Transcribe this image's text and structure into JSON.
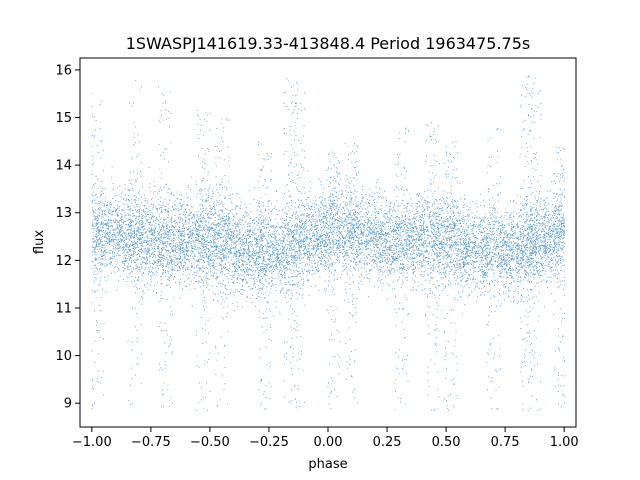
{
  "chart_data": {
    "type": "scatter",
    "title": "1SWASPJ141619.33-413848.4 Period 1963475.75s",
    "xlabel": "phase",
    "ylabel": "flux",
    "xlim": [
      -1.05,
      1.05
    ],
    "ylim": [
      8.5,
      16.25
    ],
    "xticks": [
      -1.0,
      -0.75,
      -0.5,
      -0.25,
      0.0,
      0.25,
      0.5,
      0.75,
      1.0
    ],
    "xtick_labels": [
      "−1.00",
      "−0.75",
      "−0.50",
      "−0.25",
      "0.00",
      "0.25",
      "0.50",
      "0.75",
      "1.00"
    ],
    "yticks": [
      9,
      10,
      11,
      12,
      13,
      14,
      15,
      16
    ],
    "ytick_labels": [
      "9",
      "10",
      "11",
      "12",
      "13",
      "14",
      "15",
      "16"
    ],
    "grid": false,
    "point_color": "#1f77b4",
    "series": [
      {
        "x_range": [
          -1.0,
          1.0
        ],
        "baseline_flux": 12.4,
        "core_spread": 0.45,
        "point_count": 12000,
        "column_outliers": [
          {
            "x": -0.98,
            "y_max": 15.6
          },
          {
            "x": -0.82,
            "y_max": 15.8
          },
          {
            "x": -0.69,
            "y_max": 15.8
          },
          {
            "x": -0.53,
            "y_max": 15.2
          },
          {
            "x": -0.45,
            "y_max": 15.0
          },
          {
            "x": -0.27,
            "y_max": 14.5
          },
          {
            "x": -0.16,
            "y_max": 15.9
          },
          {
            "x": -0.13,
            "y_max": 15.9
          },
          {
            "x": 0.02,
            "y_max": 14.3
          },
          {
            "x": 0.1,
            "y_max": 14.6
          },
          {
            "x": 0.31,
            "y_max": 14.8
          },
          {
            "x": 0.44,
            "y_max": 14.9
          },
          {
            "x": 0.52,
            "y_max": 14.6
          },
          {
            "x": 0.7,
            "y_max": 14.8
          },
          {
            "x": 0.84,
            "y_max": 15.9
          },
          {
            "x": 0.87,
            "y_max": 15.9
          },
          {
            "x": 0.98,
            "y_max": 14.5
          }
        ]
      }
    ]
  }
}
